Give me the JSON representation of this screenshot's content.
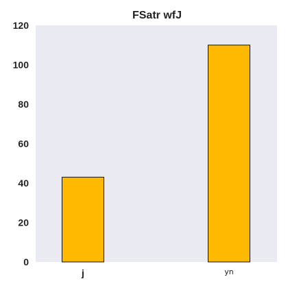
{
  "chart_data": {
    "type": "bar",
    "title": "FSatr wfJ",
    "xlabel": "",
    "ylabel": "",
    "categories": [
      "j",
      "yn"
    ],
    "values": [
      43,
      110
    ],
    "ylim": [
      0,
      120
    ],
    "yticks": [
      0,
      20,
      40,
      60,
      80,
      100,
      120
    ],
    "grid": false,
    "legend": "none",
    "colors": {
      "bar_fill": "#FFB900",
      "bar_stroke": "#111111",
      "plot_background": "#EAEAF2",
      "page_background": "#FFFFFF",
      "text": "#222222"
    }
  }
}
